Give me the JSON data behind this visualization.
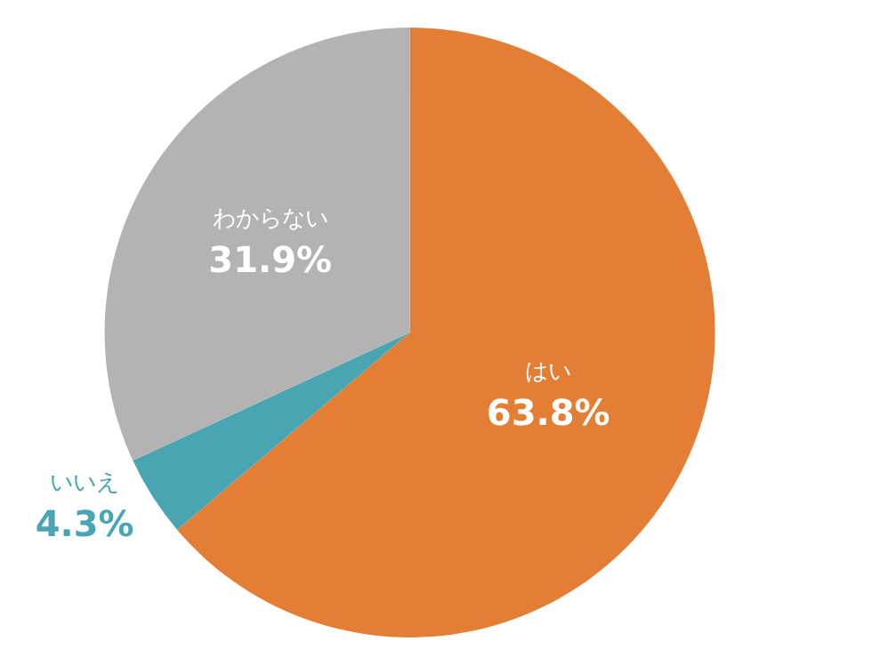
{
  "chart_data": {
    "type": "pie",
    "categories": [
      "はい",
      "いいえ",
      "わからない"
    ],
    "values": [
      63.8,
      4.3,
      31.9
    ],
    "value_labels": [
      "63.8%",
      "4.3%",
      "31.9%"
    ],
    "colors": [
      "#e57e35",
      "#4aa5b3",
      "#b3b3b3"
    ],
    "legend": false
  }
}
